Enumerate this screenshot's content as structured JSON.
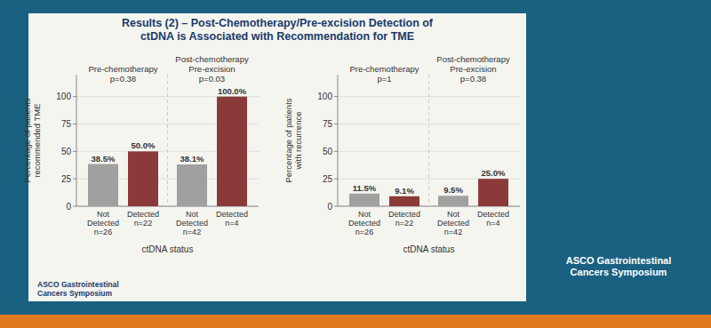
{
  "chart_data": [
    {
      "type": "bar",
      "title": "Results (2) – Post-Chemotherapy/Pre-excision Detection of\nctDNA is Associated with Recommendation for TME",
      "categories": [
        "Not\nDetected\nn=26",
        "Detected\nn=22",
        "Not\nDetected\nn=42",
        "Detected\nn=4"
      ],
      "values": [
        38.5,
        50.0,
        38.1,
        100.0
      ],
      "value_labels": [
        "38.5%",
        "50.0%",
        "38.1%",
        "100.0%"
      ],
      "colors": [
        "#a0a0a0",
        "#8b3a3a",
        "#a0a0a0",
        "#8b3a3a"
      ],
      "ylabel": "Percentage of patients\nrecommended TME",
      "xlabel": "ctDNA status",
      "ylim": [
        0,
        120
      ],
      "yticks": [
        0,
        25,
        50,
        75,
        100
      ],
      "grid": true,
      "data_labels": true,
      "annotations": [
        "Pre-chemotherapy",
        "p=0.38",
        "Post-chemotherapy\nPre-excision",
        "p=0.03",
        "ASCO Gastrointestinal\nCancers Symposium"
      ]
    },
    {
      "type": "bar",
      "categories": [
        "Not\nDetected\nn=26",
        "Detected\nn=22",
        "Not\nDetected\nn=42",
        "Detected\nn=4"
      ],
      "values": [
        11.5,
        9.1,
        9.5,
        25.0
      ],
      "value_labels": [
        "11.5%",
        "9.1%",
        "9.5%",
        "25.0%"
      ],
      "colors": [
        "#a0a0a0",
        "#8b3a3a",
        "#a0a0a0",
        "#8b3a3a"
      ],
      "ylabel": "Percentage of patients\nwith recurrence",
      "xlabel": "ctDNA status",
      "ylim": [
        0,
        120
      ],
      "yticks": [
        0,
        25,
        50,
        75,
        100
      ],
      "grid": true,
      "data_labels": true,
      "annotations": [
        "Pre-chemotherapy",
        "p=1",
        "Post-chemotherapy\nPre-excision",
        "p=0.38",
        "ASCO Gastrointestinal\nCancers Symposium"
      ]
    }
  ]
}
